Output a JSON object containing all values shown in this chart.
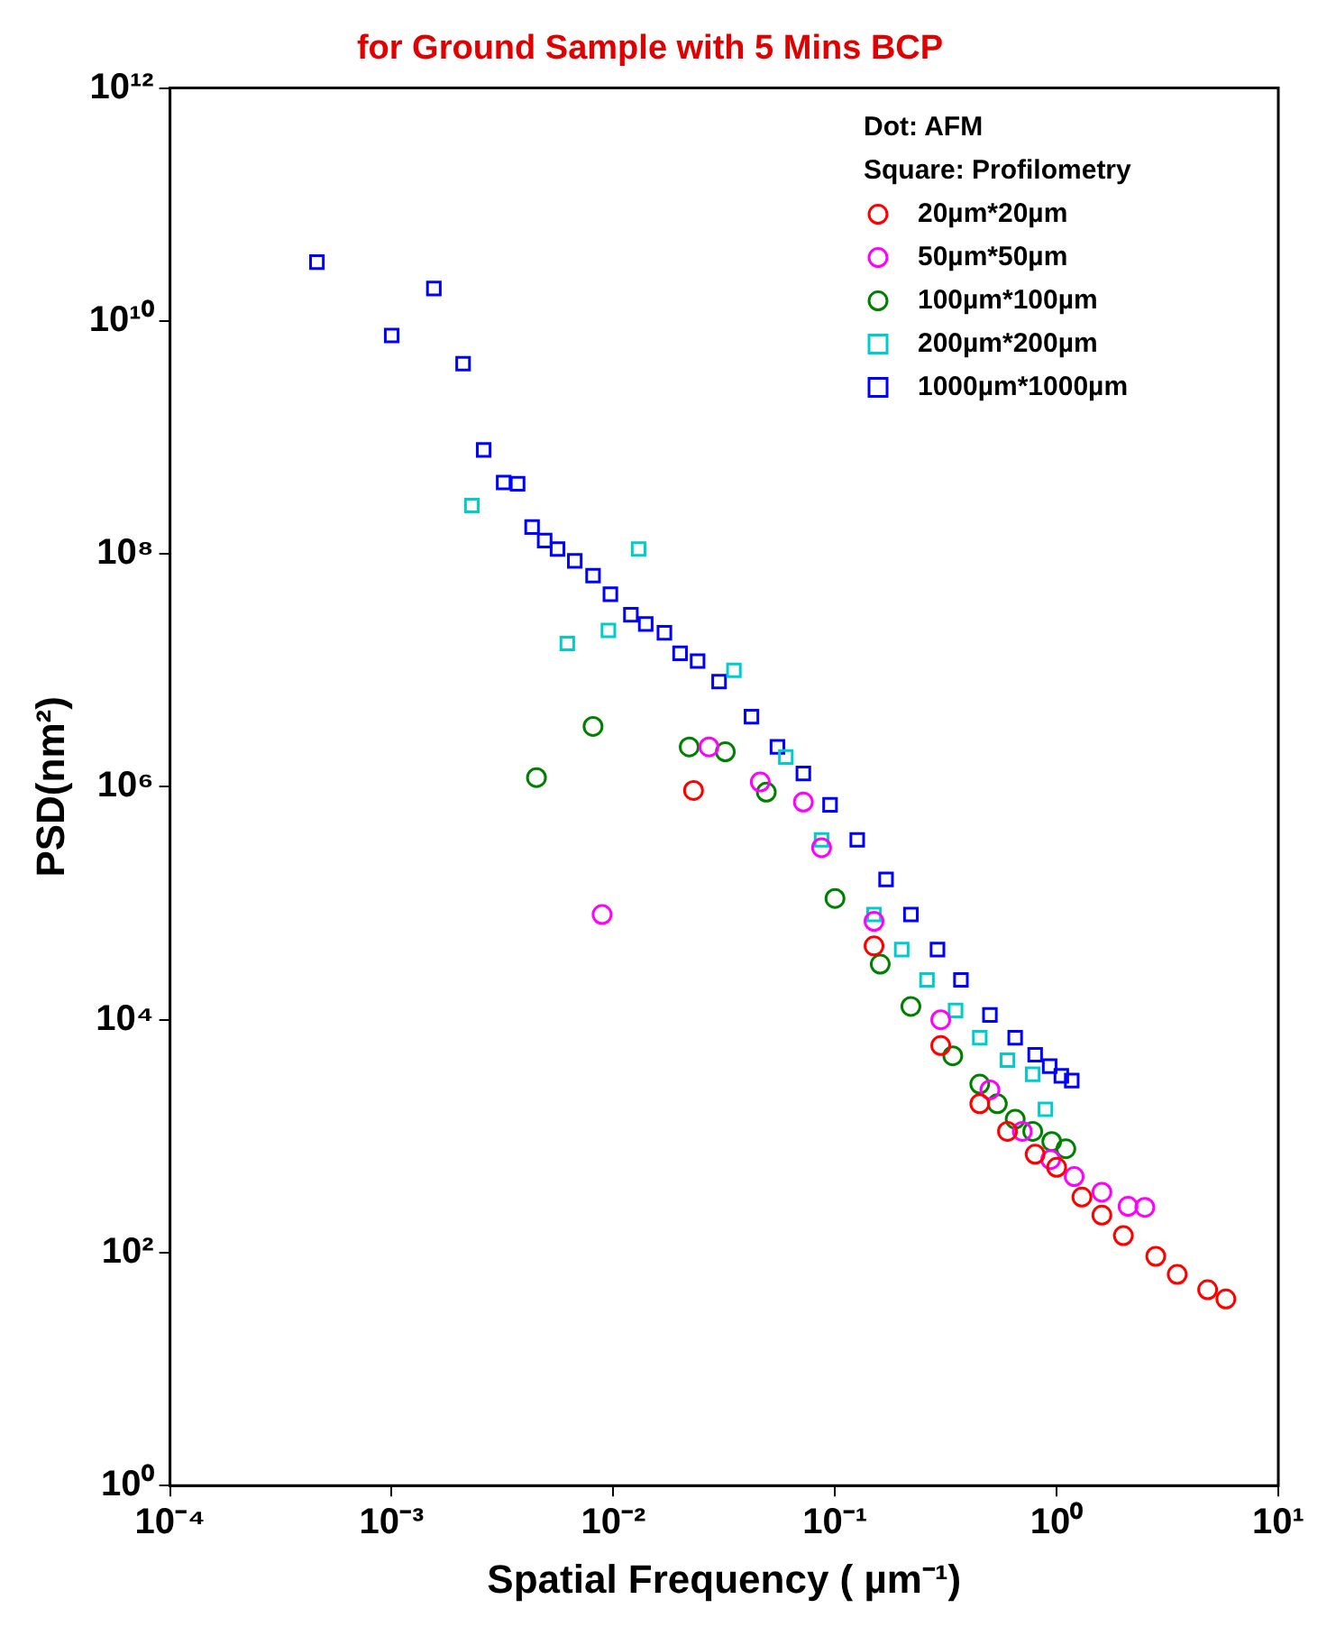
{
  "chart_data": {
    "type": "scatter",
    "title": "for Ground Sample with 5 Mins BCP",
    "xlabel": "Spatial Frequency ( µm⁻¹)",
    "ylabel": "PSD(nm²)",
    "log": "xy",
    "grid": false,
    "legend": "top right",
    "annotations": [
      "Dot: AFM",
      "Square: Profilometry"
    ],
    "xlim": [
      0.0001,
      10
    ],
    "xticks": [
      {
        "value": 0.0001,
        "label": "10⁻⁴"
      },
      {
        "value": 0.001,
        "label": "10⁻³"
      },
      {
        "value": 0.01,
        "label": "10⁻²"
      },
      {
        "value": 0.1,
        "label": "10⁻¹"
      },
      {
        "value": 1,
        "label": "10⁰"
      },
      {
        "value": 10,
        "label": "10¹"
      }
    ],
    "ylim": [
      1,
      1000000000000
    ],
    "yticks": [
      {
        "value": 1,
        "label": "10⁰"
      },
      {
        "value": 100,
        "label": "10²"
      },
      {
        "value": 10000,
        "label": "10⁴"
      },
      {
        "value": 1000000,
        "label": "10⁶"
      },
      {
        "value": 100000000,
        "label": "10⁸"
      },
      {
        "value": 10000000000,
        "label": "10¹⁰"
      },
      {
        "value": 1000000000000,
        "label": "10¹²"
      }
    ],
    "series": [
      {
        "name": "20µm*20µm",
        "color": "#ff0000",
        "marker": "circle",
        "x": [
          0.023,
          0.15,
          0.3,
          0.45,
          0.6,
          0.8,
          1.0,
          1.3,
          1.6,
          2.0,
          2.8,
          3.5,
          4.8,
          5.8
        ],
        "values": [
          930000,
          43000,
          6000,
          1900,
          1100,
          700,
          540,
          300,
          210,
          140,
          93,
          65,
          48,
          40
        ]
      },
      {
        "name": "50µm*50µm",
        "color": "#ff00ff",
        "marker": "circle",
        "x": [
          0.0089,
          0.027,
          0.046,
          0.072,
          0.087,
          0.15,
          0.3,
          0.5,
          0.7,
          0.94,
          1.2,
          1.6,
          2.1,
          2.5
        ],
        "values": [
          80000,
          2200000,
          1100000,
          740000,
          300000,
          70000,
          10000,
          2500,
          1100,
          630,
          450,
          330,
          250,
          245
        ]
      },
      {
        "name": "100µm*100µm",
        "color": "#008000",
        "marker": "circle",
        "x": [
          0.0045,
          0.0081,
          0.022,
          0.032,
          0.049,
          0.1,
          0.16,
          0.22,
          0.34,
          0.45,
          0.54,
          0.65,
          0.78,
          0.95,
          1.1
        ],
        "values": [
          1200000,
          3300000,
          2200000,
          2000000,
          900000,
          110000,
          30000,
          13000,
          4900,
          2800,
          1900,
          1400,
          1100,
          900,
          780
        ]
      },
      {
        "name": "200µm*200µm",
        "color": "#00cccc",
        "marker": "square",
        "x": [
          0.0023,
          0.0062,
          0.0095,
          0.013,
          0.035,
          0.06,
          0.087,
          0.15,
          0.2,
          0.26,
          0.35,
          0.45,
          0.6,
          0.78,
          0.89
        ],
        "values": [
          260000000,
          17000000,
          22000000,
          110000000,
          10000000,
          1800000,
          350000,
          80000,
          40000,
          22000,
          12000,
          7000,
          4500,
          3400,
          1700
        ]
      },
      {
        "name": "1000µm*1000µm",
        "color": "#0000ff",
        "marker": "square",
        "x": [
          0.00046,
          0.001,
          0.00155,
          0.0021,
          0.0026,
          0.0032,
          0.0037,
          0.0043,
          0.0049,
          0.0056,
          0.0067,
          0.0081,
          0.0097,
          0.012,
          0.014,
          0.017,
          0.02,
          0.024,
          0.03,
          0.042,
          0.055,
          0.072,
          0.095,
          0.126,
          0.17,
          0.22,
          0.29,
          0.37,
          0.5,
          0.65,
          0.8,
          0.93,
          1.05,
          1.17
        ],
        "values": [
          32000000000,
          7500000000,
          19000000000,
          4300000000,
          780000000,
          410000000,
          400000000,
          170000000,
          130000000,
          110000000,
          87000000,
          65000000,
          45000000,
          30000000,
          25000000,
          21000000,
          14000000,
          12000000,
          8000000,
          4000000,
          2200000,
          1300000,
          700000,
          350000,
          160000,
          80000,
          40000,
          22000,
          11000,
          7000,
          5000,
          4000,
          3300,
          3000
        ]
      }
    ]
  }
}
